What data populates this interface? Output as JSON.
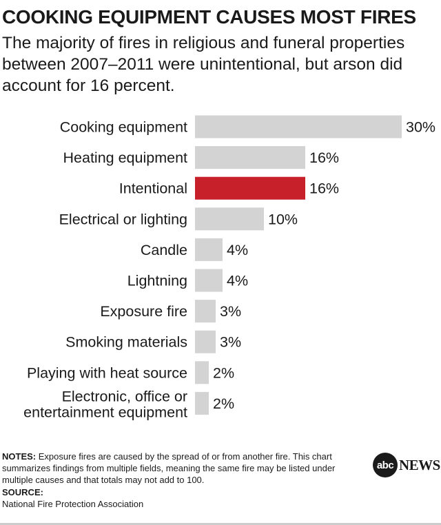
{
  "header": {
    "title": "COOKING EQUIPMENT CAUSES MOST FIRES",
    "subtitle": "The majority of fires in religious and funeral properties between 2007–2011 were unintentional, but arson did account for 16 percent."
  },
  "chart_data": {
    "type": "bar",
    "orientation": "horizontal",
    "title": "COOKING EQUIPMENT CAUSES MOST FIRES",
    "categories": [
      [
        "Cooking equipment"
      ],
      [
        "Heating equipment"
      ],
      [
        "Intentional"
      ],
      [
        "Electrical or lighting"
      ],
      [
        "Candle"
      ],
      [
        "Lightning"
      ],
      [
        "Exposure fire"
      ],
      [
        "Smoking materials"
      ],
      [
        "Playing with heat source"
      ],
      [
        "Electronic, office or",
        "entertainment equipment"
      ]
    ],
    "values": [
      30,
      16,
      16,
      10,
      4,
      4,
      3,
      3,
      2,
      2
    ],
    "value_labels": [
      "30%",
      "16%",
      "16%",
      "10%",
      "4%",
      "4%",
      "3%",
      "3%",
      "2%",
      "2%"
    ],
    "bar_colors": [
      "#d3d3d3",
      "#d3d3d3",
      "#c8202a",
      "#d3d3d3",
      "#d3d3d3",
      "#d3d3d3",
      "#d3d3d3",
      "#d3d3d3",
      "#d3d3d3",
      "#d3d3d3"
    ],
    "xlim": [
      0,
      30
    ],
    "grid": false,
    "legend": "none"
  },
  "footer": {
    "notes_label": "NOTES:",
    "notes_text": "Exposure fires are caused by the spread of or from another fire. This chart summarizes findings from multiple fields, meaning the same fire may be listed under multiple causes and that totals may not add to 100.",
    "source_label": "SOURCE:",
    "source_text": "National Fire Protection Association"
  },
  "brand": {
    "logo_mark": "abc",
    "logo_word": "NEWS"
  },
  "colors": {
    "accent": "#c8202a",
    "bar": "#d3d3d3",
    "text": "#1a1a1a"
  }
}
